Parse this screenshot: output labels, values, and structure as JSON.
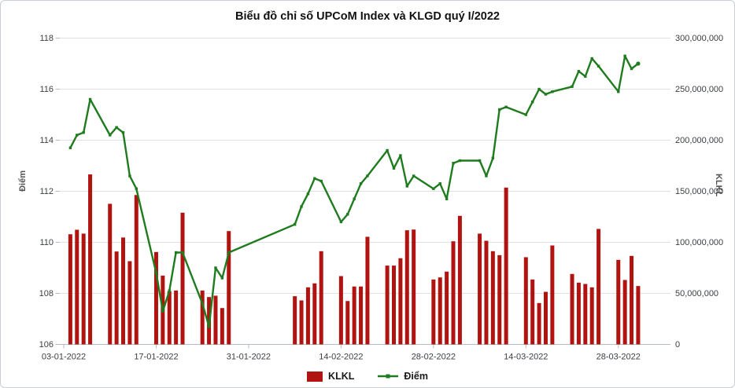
{
  "title": "Biểu đồ chỉ số UPCoM Index và KLGD quý I/2022",
  "colors": {
    "bar": "#B01310",
    "line": "#1E7C1E",
    "grid": "#dde1e6",
    "axis": "#b6bcc4",
    "tick_text": "#3c4043",
    "axis_title": "#555555",
    "background": "#ffffff",
    "border": "#c9ced6"
  },
  "left_axis": {
    "label": "Điểm",
    "ticks": [
      106,
      108,
      110,
      112,
      114,
      116,
      118
    ],
    "range": [
      106,
      118
    ]
  },
  "right_axis": {
    "label": "KLKL",
    "tick_labels": [
      "0",
      "50,000,000",
      "100,000,000",
      "150,000,000",
      "200,000,000",
      "250,000,000",
      "300,000,000"
    ],
    "tick_values": [
      0,
      50000000,
      100000000,
      150000000,
      200000000,
      250000000,
      300000000
    ],
    "range": [
      0,
      300000000
    ]
  },
  "x_axis": {
    "tick_labels": [
      "03-01-2022",
      "17-01-2022",
      "31-01-2022",
      "14-02-2022",
      "28-02-2022",
      "14-03-2022",
      "28-03-2022"
    ]
  },
  "legend": [
    {
      "label": "KLKL",
      "type": "bar",
      "color": "#B01310"
    },
    {
      "label": "Điểm",
      "type": "line",
      "color": "#1E7C1E"
    }
  ],
  "chart_data": {
    "type": "combo-bar-line",
    "title": "Biểu đồ chỉ số UPCoM Index và KLGD quý I/2022",
    "x": [
      "04-01-2022",
      "05-01-2022",
      "06-01-2022",
      "07-01-2022",
      "10-01-2022",
      "11-01-2022",
      "12-01-2022",
      "13-01-2022",
      "14-01-2022",
      "17-01-2022",
      "18-01-2022",
      "19-01-2022",
      "20-01-2022",
      "21-01-2022",
      "24-01-2022",
      "25-01-2022",
      "26-01-2022",
      "27-01-2022",
      "28-01-2022",
      "07-02-2022",
      "08-02-2022",
      "09-02-2022",
      "10-02-2022",
      "11-02-2022",
      "14-02-2022",
      "15-02-2022",
      "16-02-2022",
      "17-02-2022",
      "18-02-2022",
      "21-02-2022",
      "22-02-2022",
      "23-02-2022",
      "24-02-2022",
      "25-02-2022",
      "28-02-2022",
      "01-03-2022",
      "02-03-2022",
      "03-03-2022",
      "04-03-2022",
      "07-03-2022",
      "08-03-2022",
      "09-03-2022",
      "10-03-2022",
      "11-03-2022",
      "14-03-2022",
      "15-03-2022",
      "16-03-2022",
      "17-03-2022",
      "18-03-2022",
      "21-03-2022",
      "22-03-2022",
      "23-03-2022",
      "24-03-2022",
      "25-03-2022",
      "28-03-2022",
      "29-03-2022",
      "30-03-2022",
      "31-03-2022"
    ],
    "series": [
      {
        "name": "KLKL",
        "type": "bar",
        "axis": "right",
        "values": [
          107900000,
          112300000,
          108500000,
          166500000,
          137700000,
          91000000,
          104700000,
          81500000,
          146300000,
          90500000,
          67400000,
          52100000,
          52800000,
          129000000,
          52800000,
          46400000,
          47700000,
          35600000,
          111000000,
          47200000,
          43100000,
          55900000,
          59800000,
          91300000,
          66900000,
          42500000,
          56700000,
          56700000,
          105400000,
          77200000,
          77200000,
          84400000,
          111800000,
          112500000,
          63600000,
          65600000,
          71300000,
          101000000,
          125900000,
          108500000,
          101500000,
          91300000,
          87400000,
          153600000,
          85400000,
          63600000,
          40500000,
          51500000,
          96900000,
          69000000,
          60500000,
          59200000,
          55900000,
          113100000,
          82800000,
          63100000,
          86700000,
          57200000
        ]
      },
      {
        "name": "Điểm",
        "type": "line",
        "axis": "left",
        "values": [
          113.7,
          114.2,
          114.3,
          115.6,
          114.2,
          114.5,
          114.3,
          112.6,
          112.1,
          108.8,
          107.3,
          108.1,
          109.6,
          109.6,
          107.6,
          106.7,
          109.0,
          108.6,
          109.6,
          110.7,
          111.4,
          111.9,
          112.5,
          112.4,
          110.8,
          111.1,
          111.7,
          112.3,
          112.6,
          113.6,
          112.9,
          113.4,
          112.2,
          112.6,
          112.1,
          112.3,
          111.7,
          113.1,
          113.2,
          113.2,
          112.6,
          113.3,
          115.2,
          115.3,
          115.0,
          115.5,
          116.0,
          115.8,
          115.9,
          116.1,
          116.7,
          116.5,
          117.2,
          116.9,
          115.9,
          117.3,
          116.8,
          117.0
        ]
      }
    ],
    "left_ylim": [
      106,
      118
    ],
    "right_ylim": [
      0,
      300000000
    ],
    "grid": true,
    "legend_position": "bottom"
  }
}
